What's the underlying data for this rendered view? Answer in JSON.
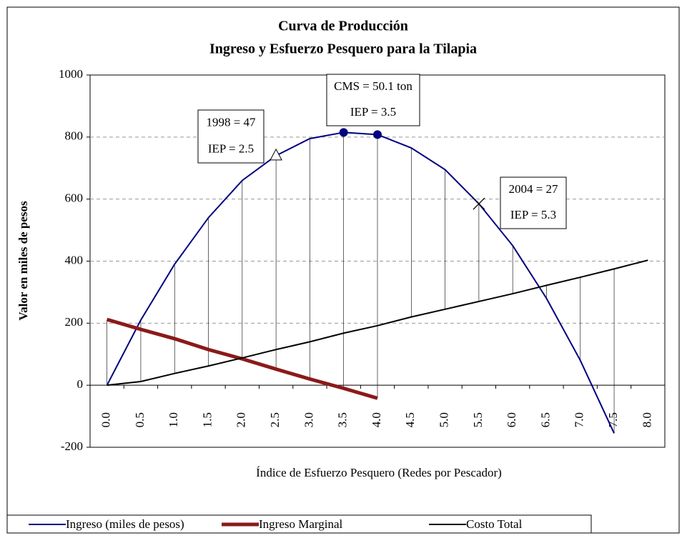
{
  "chart_data": {
    "type": "line",
    "title": "Curva de Producción",
    "subtitle": "Ingreso y Esfuerzo Pesquero para la Tilapia",
    "x_label": "Índice de Esfuerzo Pesquero (Redes por Pescador)",
    "y_label": "Valor en miles de pesos",
    "categories": [
      "0.0",
      "0.5",
      "1.0",
      "1.5",
      "2.0",
      "2.5",
      "3.0",
      "3.5",
      "4.0",
      "4.5",
      "5.0",
      "5.5",
      "6.0",
      "6.5",
      "7.0",
      "7.5",
      "8.0"
    ],
    "series": [
      {
        "name": "Ingreso (miles de pesos)",
        "color": "#000080",
        "values": [
          0,
          210,
          390,
          540,
          660,
          740,
          795,
          815,
          808,
          765,
          695,
          585,
          450,
          280,
          80,
          -155,
          null
        ]
      },
      {
        "name": "Ingreso Marginal",
        "color": "#8b1a1a",
        "values": [
          212,
          180,
          150,
          115,
          85,
          52,
          20,
          -10,
          -42,
          null,
          null,
          null,
          null,
          null,
          null,
          null,
          null
        ]
      },
      {
        "name": "Costo Total",
        "color": "#000000",
        "values": [
          0,
          12,
          38,
          62,
          88,
          115,
          140,
          168,
          192,
          220,
          245,
          270,
          295,
          322,
          348,
          375,
          403
        ]
      }
    ],
    "ylim": [
      -200,
      1000
    ],
    "yticks": [
      -200,
      0,
      200,
      400,
      600,
      800,
      1000
    ],
    "grid": true,
    "legend": "bottom",
    "annotations": [
      {
        "lines": [
          "1998 = 47",
          "IEP = 2.5"
        ]
      },
      {
        "lines": [
          "CMS = 50.1 ton",
          "IEP = 3.5"
        ]
      },
      {
        "lines": [
          "2004 = 27",
          "IEP = 5.3"
        ]
      }
    ]
  }
}
